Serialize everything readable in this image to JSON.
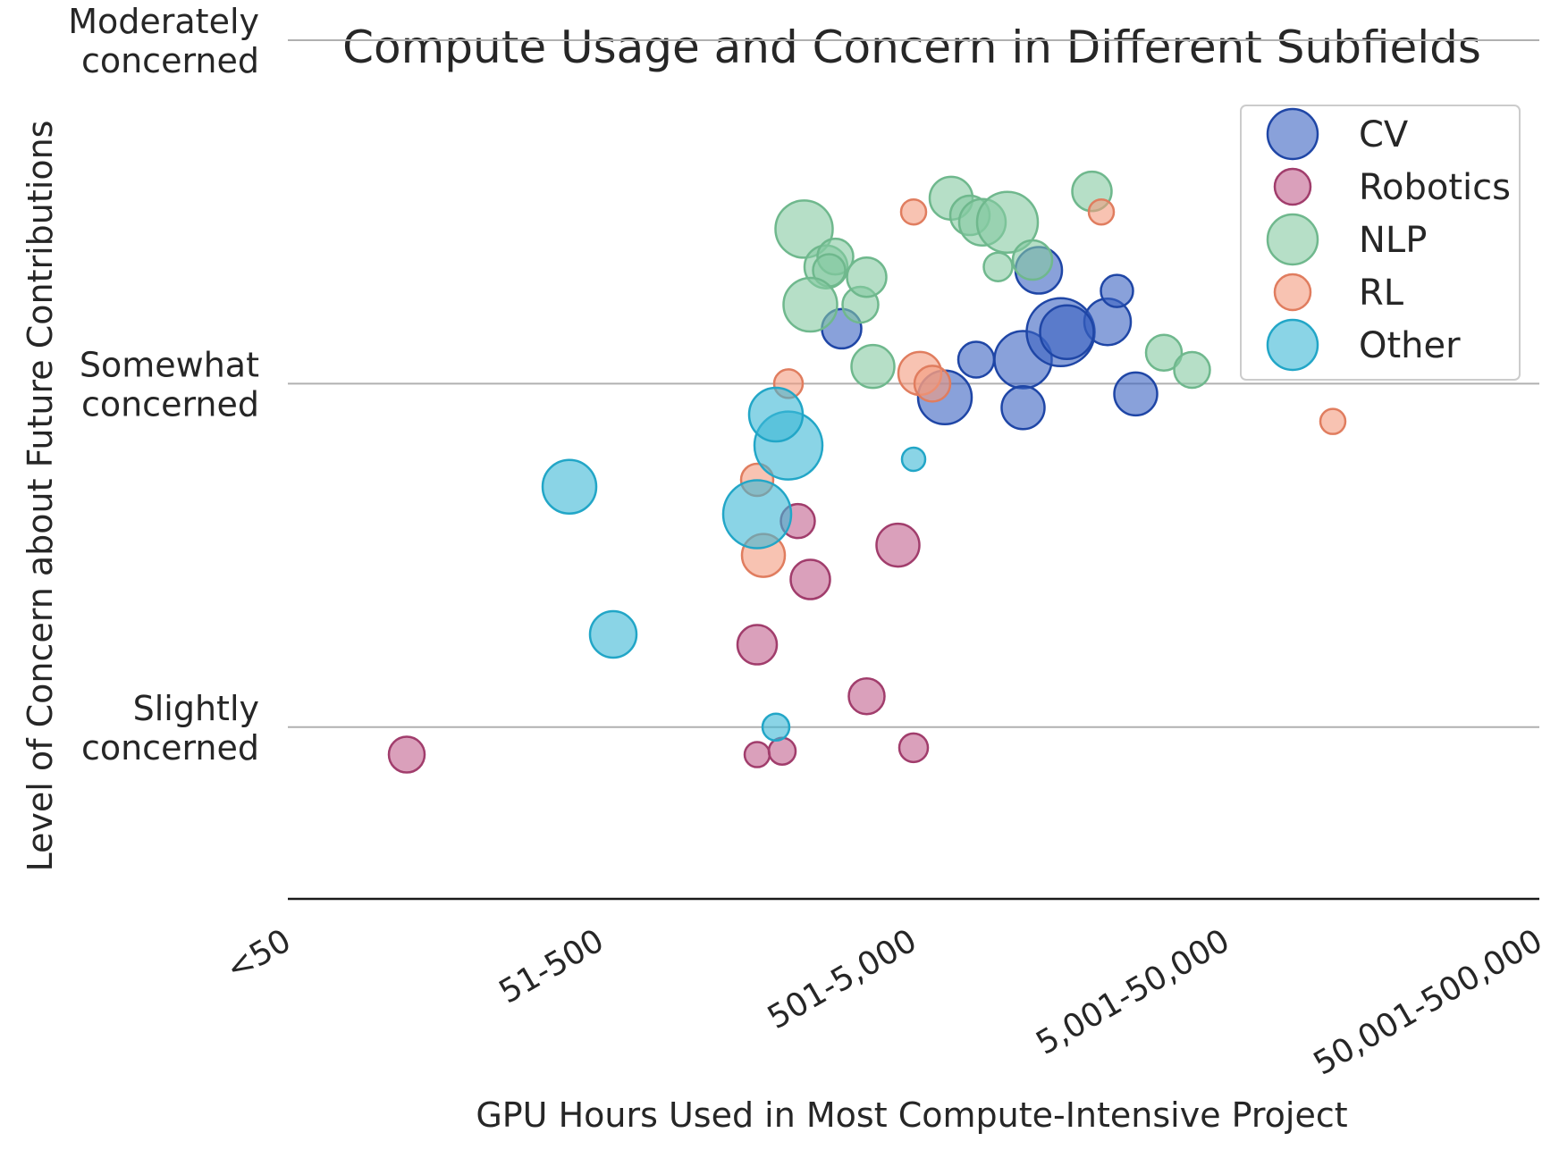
{
  "chart_data": {
    "type": "scatter",
    "title": "Compute Usage and Concern in Different Subfields",
    "xlabel": "GPU Hours Used in Most Compute-Intensive Project",
    "ylabel": "Level of Concern about Future Contributions",
    "x_categories": [
      "<50",
      "51-500",
      "501-5,000",
      "5,001-50,000",
      "50,001-500,000"
    ],
    "xlim": [
      0,
      4
    ],
    "y_ticks": [
      {
        "value": 2,
        "lines": [
          "Slightly",
          "concerned"
        ]
      },
      {
        "value": 3,
        "lines": [
          "Somewhat",
          "concerned"
        ]
      },
      {
        "value": 4,
        "lines": [
          "Moderately",
          "concerned"
        ]
      }
    ],
    "ylim": [
      1.5,
      4
    ],
    "grid": "horizontal",
    "legend_position": "top-right",
    "series": [
      {
        "name": "CV",
        "color": "#3a63c2",
        "stroke": "#1f46a6",
        "points": [
          {
            "x": 1.77,
            "y": 3.16,
            "size": 22
          },
          {
            "x": 2.1,
            "y": 2.96,
            "size": 30
          },
          {
            "x": 2.2,
            "y": 3.07,
            "size": 20
          },
          {
            "x": 2.35,
            "y": 3.07,
            "size": 32
          },
          {
            "x": 2.35,
            "y": 2.93,
            "size": 24
          },
          {
            "x": 2.4,
            "y": 3.33,
            "size": 26
          },
          {
            "x": 2.47,
            "y": 3.15,
            "size": 38
          },
          {
            "x": 2.62,
            "y": 3.18,
            "size": 26
          },
          {
            "x": 2.65,
            "y": 3.27,
            "size": 18
          },
          {
            "x": 2.49,
            "y": 3.15,
            "size": 30
          },
          {
            "x": 2.71,
            "y": 2.97,
            "size": 24
          }
        ]
      },
      {
        "name": "Robotics",
        "color": "#c2608d",
        "stroke": "#a13d6c",
        "points": [
          {
            "x": 0.38,
            "y": 1.92,
            "size": 20
          },
          {
            "x": 1.5,
            "y": 1.92,
            "size": 14
          },
          {
            "x": 1.58,
            "y": 1.93,
            "size": 15
          },
          {
            "x": 1.5,
            "y": 2.24,
            "size": 22
          },
          {
            "x": 1.63,
            "y": 2.6,
            "size": 19
          },
          {
            "x": 1.67,
            "y": 2.43,
            "size": 22
          },
          {
            "x": 1.85,
            "y": 2.09,
            "size": 20
          },
          {
            "x": 1.95,
            "y": 2.53,
            "size": 24
          },
          {
            "x": 2.0,
            "y": 1.94,
            "size": 16
          }
        ]
      },
      {
        "name": "NLP",
        "color": "#86c9a1",
        "stroke": "#6fb88d",
        "points": [
          {
            "x": 1.65,
            "y": 3.45,
            "size": 32
          },
          {
            "x": 1.72,
            "y": 3.34,
            "size": 24
          },
          {
            "x": 1.75,
            "y": 3.37,
            "size": 20
          },
          {
            "x": 1.73,
            "y": 3.33,
            "size": 18
          },
          {
            "x": 1.67,
            "y": 3.23,
            "size": 30
          },
          {
            "x": 1.83,
            "y": 3.23,
            "size": 20
          },
          {
            "x": 1.85,
            "y": 3.31,
            "size": 22
          },
          {
            "x": 1.87,
            "y": 3.05,
            "size": 24
          },
          {
            "x": 2.12,
            "y": 3.54,
            "size": 24
          },
          {
            "x": 2.18,
            "y": 3.49,
            "size": 22
          },
          {
            "x": 2.22,
            "y": 3.47,
            "size": 26
          },
          {
            "x": 2.3,
            "y": 3.47,
            "size": 34
          },
          {
            "x": 2.27,
            "y": 3.34,
            "size": 16
          },
          {
            "x": 2.38,
            "y": 3.36,
            "size": 22
          },
          {
            "x": 2.57,
            "y": 3.56,
            "size": 22
          },
          {
            "x": 2.8,
            "y": 3.09,
            "size": 20
          },
          {
            "x": 2.89,
            "y": 3.04,
            "size": 20
          }
        ]
      },
      {
        "name": "RL",
        "color": "#f39b7f",
        "stroke": "#e07d5f",
        "points": [
          {
            "x": 2.0,
            "y": 3.5,
            "size": 14
          },
          {
            "x": 2.6,
            "y": 3.5,
            "size": 14
          },
          {
            "x": 1.6,
            "y": 3.0,
            "size": 16
          },
          {
            "x": 1.5,
            "y": 2.72,
            "size": 18
          },
          {
            "x": 1.52,
            "y": 2.5,
            "size": 24
          },
          {
            "x": 2.02,
            "y": 3.03,
            "size": 24
          },
          {
            "x": 2.06,
            "y": 3.0,
            "size": 20
          },
          {
            "x": 3.34,
            "y": 2.89,
            "size": 14
          }
        ]
      },
      {
        "name": "Other",
        "color": "#3cb8d6",
        "stroke": "#22a6c7",
        "points": [
          {
            "x": 0.9,
            "y": 2.7,
            "size": 30
          },
          {
            "x": 1.04,
            "y": 2.27,
            "size": 26
          },
          {
            "x": 1.5,
            "y": 2.62,
            "size": 38
          },
          {
            "x": 1.6,
            "y": 2.82,
            "size": 38
          },
          {
            "x": 1.56,
            "y": 2.91,
            "size": 30
          },
          {
            "x": 1.56,
            "y": 2.0,
            "size": 15
          },
          {
            "x": 2.0,
            "y": 2.78,
            "size": 13
          }
        ]
      }
    ]
  }
}
